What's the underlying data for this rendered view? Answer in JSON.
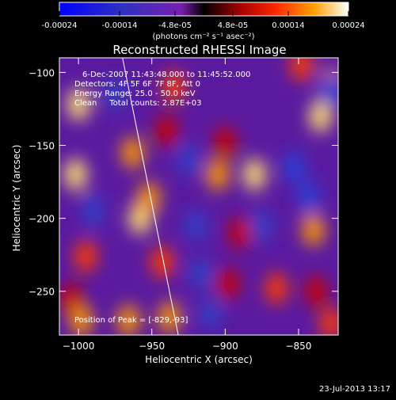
{
  "colorbar": {
    "ticks": [
      "-0.00024",
      "-0.00014",
      "-4.8e-05",
      "4.8e-05",
      "0.00014",
      "0.00024"
    ],
    "units": "(photons cm⁻² s⁻¹ asec⁻²)"
  },
  "chart_data": {
    "type": "heatmap",
    "title": "Reconstructed RHESSI Image",
    "xlabel": "Heliocentric X (arcsec)",
    "ylabel": "Heliocentric Y (arcsec)",
    "xlim": [
      -1013,
      -823
    ],
    "ylim": [
      -280,
      -90
    ],
    "x_ticks": [
      -1000,
      -950,
      -900,
      -850
    ],
    "y_ticks": [
      -100,
      -150,
      -200,
      -250
    ],
    "x_tick_labels": [
      "−1000",
      "−950",
      "−900",
      "−850"
    ],
    "y_tick_labels": [
      "−100",
      "−150",
      "−200",
      "−250"
    ],
    "color_range": [
      -0.00024,
      0.00024
    ],
    "annotations": {
      "time": "6-Dec-2007 11:43:48.000 to 11:45:52.000",
      "detectors": "Detectors: 4F 5F 6F 7F 8F, Att 0",
      "energy": "Energy Range: 25.0 - 50.0 keV",
      "clean": "Clean     Total counts: 2.87E+03",
      "peak": "Position of Peak = [-829,-93]"
    },
    "limb_curve": [
      [
        -970,
        -90
      ],
      [
        -958,
        -150
      ],
      [
        -948,
        -200
      ],
      [
        -940,
        -240
      ],
      [
        -932,
        -280
      ]
    ],
    "sources": [
      {
        "x": -1000,
        "y": -122,
        "v": 0.00022
      },
      {
        "x": -1002,
        "y": -170,
        "v": 0.00024
      },
      {
        "x": -995,
        "y": -226,
        "v": 0.00012
      },
      {
        "x": -1005,
        "y": -255,
        "v": 8e-05
      },
      {
        "x": -998,
        "y": -270,
        "v": 0.00016
      },
      {
        "x": -963,
        "y": -155,
        "v": 0.00018
      },
      {
        "x": -958,
        "y": -200,
        "v": 0.00024
      },
      {
        "x": -952,
        "y": -186,
        "v": 0.00016
      },
      {
        "x": -943,
        "y": -230,
        "v": 0.00012
      },
      {
        "x": -966,
        "y": -270,
        "v": 0.00017
      },
      {
        "x": -938,
        "y": -268,
        "v": 0.00018
      },
      {
        "x": -935,
        "y": -110,
        "v": 0.00012
      },
      {
        "x": -940,
        "y": -140,
        "v": 9e-05
      },
      {
        "x": -905,
        "y": -170,
        "v": 0.00016
      },
      {
        "x": -900,
        "y": -148,
        "v": 0.0001
      },
      {
        "x": -880,
        "y": -170,
        "v": 0.00024
      },
      {
        "x": -890,
        "y": -210,
        "v": 5e-05
      },
      {
        "x": -898,
        "y": -245,
        "v": 9e-05
      },
      {
        "x": -865,
        "y": -248,
        "v": 0.00012
      },
      {
        "x": -840,
        "y": -208,
        "v": 0.00018
      },
      {
        "x": -835,
        "y": -130,
        "v": 0.00024
      },
      {
        "x": -828,
        "y": -108,
        "v": 0.00017
      },
      {
        "x": -848,
        "y": -95,
        "v": 0.00014
      },
      {
        "x": -838,
        "y": -250,
        "v": 9e-05
      },
      {
        "x": -828,
        "y": -272,
        "v": 0.00015
      },
      {
        "x": -990,
        "y": -195,
        "v": -4e-05
      },
      {
        "x": -925,
        "y": -160,
        "v": -5e-05
      },
      {
        "x": -920,
        "y": -205,
        "v": -8e-05
      },
      {
        "x": -917,
        "y": -238,
        "v": -6e-05
      },
      {
        "x": -875,
        "y": -205,
        "v": -4e-05
      },
      {
        "x": -853,
        "y": -165,
        "v": -0.00012
      },
      {
        "x": -843,
        "y": -185,
        "v": -0.0001
      },
      {
        "x": -910,
        "y": -265,
        "v": -4e-05
      },
      {
        "x": -975,
        "y": -115,
        "v": -4e-05
      },
      {
        "x": -828,
        "y": -112,
        "v": -0.0001
      }
    ]
  },
  "footer": {
    "timestamp": "23-Jul-2013 13:17"
  }
}
